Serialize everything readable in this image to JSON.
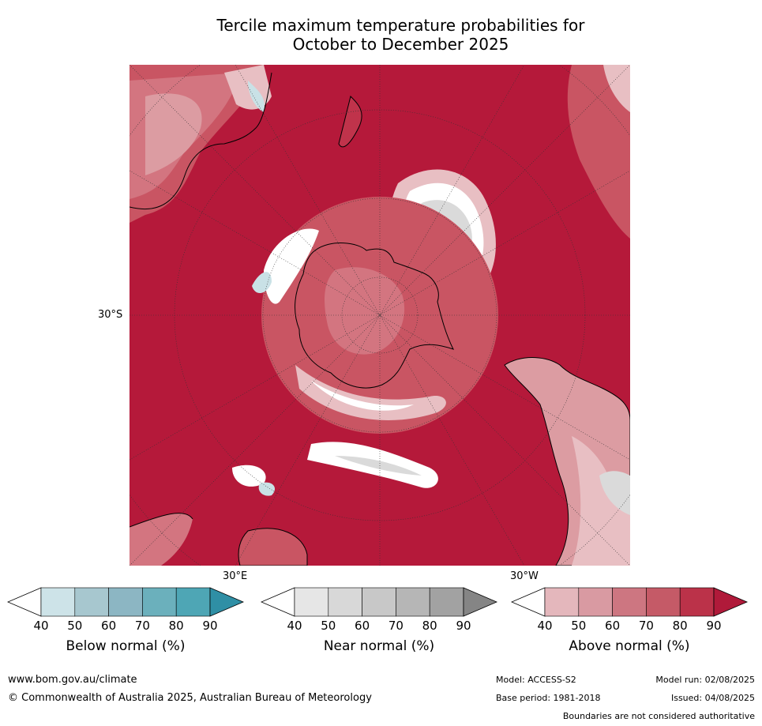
{
  "title": {
    "line1": "Tercile maximum temperature probabilities for",
    "line2": "October to December 2025"
  },
  "map": {
    "projection": "polar stereographic (south pole)",
    "labels": {
      "lat": "30°S",
      "lon_east": "30°E",
      "lon_west": "30°W"
    },
    "colors": {
      "above_90": "#b5193a",
      "above_80": "#c0334b",
      "above_70": "#c95563",
      "above_60": "#d37580",
      "above_50": "#dc9ca2",
      "above_40": "#e8bfc3",
      "near": "#dadada",
      "below_50": "#a6c7cf",
      "below_40": "#c9e1e6",
      "white": "#ffffff"
    }
  },
  "colorbars": [
    {
      "label": "Below normal (%)",
      "ticks": [
        "40",
        "50",
        "60",
        "70",
        "80",
        "90"
      ],
      "colors": [
        "#ffffff",
        "#cde3e8",
        "#a7c7cf",
        "#8cb6c3",
        "#6bb0bc",
        "#4ea6b5",
        "#2f8fa5"
      ]
    },
    {
      "label": "Near normal (%)",
      "ticks": [
        "40",
        "50",
        "60",
        "70",
        "80",
        "90"
      ],
      "colors": [
        "#ffffff",
        "#e6e6e6",
        "#d8d8d8",
        "#c8c8c8",
        "#b6b6b6",
        "#a2a2a2",
        "#858585"
      ]
    },
    {
      "label": "Above normal (%)",
      "ticks": [
        "40",
        "50",
        "60",
        "70",
        "80",
        "90"
      ],
      "colors": [
        "#ffffff",
        "#e4b7bc",
        "#d99aa2",
        "#cd7681",
        "#c55a67",
        "#bb3249",
        "#b01a3a"
      ]
    }
  ],
  "footer": {
    "url": "www.bom.gov.au/climate",
    "copyright": "© Commonwealth of Australia 2025, Australian Bureau of Meteorology",
    "model": "Model: ACCESS-S2",
    "base_period": "Base period: 1981-2018",
    "model_run": "Model run: 02/08/2025",
    "issued": "Issued: 04/08/2025",
    "disclaimer": "Boundaries are not considered authoritative"
  }
}
